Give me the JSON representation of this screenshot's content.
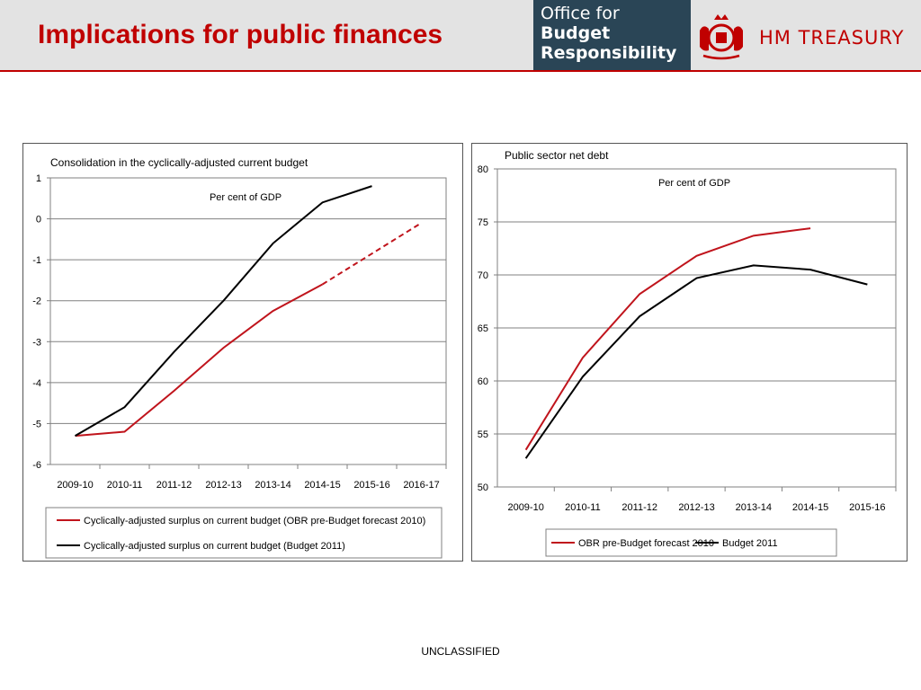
{
  "slide": {
    "title": "Implications for public finances",
    "footer": "UNCLASSIFIED"
  },
  "logos": {
    "obr": {
      "line1": "Office for",
      "line2": "Budget",
      "line3": "Responsibility",
      "background": "#2a4556"
    },
    "hm_treasury": {
      "text": "HM TREASURY",
      "icon": "royal-crest-icon",
      "color": "#c00000"
    }
  },
  "colors": {
    "accent": "#c00000",
    "header_bg": "#e3e3e3",
    "series_red": "#c0141c",
    "series_black": "#000000"
  },
  "chart_data": [
    {
      "type": "line",
      "title": "Consolidation in the cyclically-adjusted current budget",
      "annotation": "Per cent of GDP",
      "categories": [
        "2009-10",
        "2010-11",
        "2011-12",
        "2012-13",
        "2013-14",
        "2014-15",
        "2015-16",
        "2016-17"
      ],
      "ylim": [
        -6,
        1
      ],
      "yticks": [
        1,
        0,
        -1,
        -2,
        -3,
        -4,
        -5,
        -6
      ],
      "grid": true,
      "legend_position": "bottom",
      "series": [
        {
          "name": "Cyclically-adjusted surplus on current budget (OBR pre-Budget forecast 2010)",
          "color": "#c0141c",
          "values": [
            -5.3,
            -5.2,
            -4.2,
            -3.15,
            -2.25,
            -1.6,
            -0.85,
            -0.1
          ],
          "dashed_from_index": 5
        },
        {
          "name": "Cyclically-adjusted surplus on current budget (Budget 2011)",
          "color": "#000000",
          "values": [
            -5.3,
            -4.6,
            -3.25,
            -2.0,
            -0.6,
            0.4,
            0.8,
            null
          ]
        }
      ]
    },
    {
      "type": "line",
      "title": "Public sector net debt",
      "annotation": "Per cent of GDP",
      "categories": [
        "2009-10",
        "2010-11",
        "2011-12",
        "2012-13",
        "2013-14",
        "2014-15",
        "2015-16"
      ],
      "ylim": [
        50,
        80
      ],
      "yticks": [
        80,
        75,
        70,
        65,
        60,
        55,
        50
      ],
      "grid": true,
      "legend_position": "bottom",
      "series": [
        {
          "name": "OBR pre-Budget forecast 2010",
          "color": "#c0141c",
          "values": [
            53.5,
            62.2,
            68.2,
            71.8,
            73.7,
            74.4,
            null
          ]
        },
        {
          "name": "Budget 2011",
          "color": "#000000",
          "values": [
            52.7,
            60.4,
            66.1,
            69.7,
            70.9,
            70.5,
            69.1
          ]
        }
      ]
    }
  ]
}
